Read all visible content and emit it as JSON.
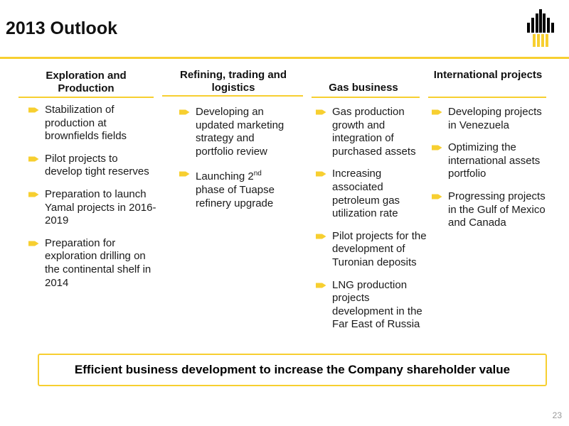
{
  "title": "2013 Outlook",
  "colors": {
    "accent": "#f7cf30",
    "logo_black": "#000000",
    "logo_yellow": "#f7cf30"
  },
  "columns": [
    {
      "heading": "Exploration and Production",
      "items": [
        "Stabilization of production at brownfields fields",
        "Pilot projects to develop tight reserves",
        "Preparation to launch Yamal projects in 2016-2019",
        "Preparation for exploration drilling on the continental shelf in 2014"
      ]
    },
    {
      "heading": "Refining, trading and logistics",
      "items": [
        "Developing an updated marketing strategy and portfolio review",
        {
          "before": "Launching 2",
          "sup": "nd",
          "after": " phase of Tuapse refinery upgrade"
        }
      ]
    },
    {
      "heading": "Gas business",
      "items": [
        "Gas production growth and integration of purchased assets",
        "Increasing associated petroleum gas utilization rate",
        "Pilot projects for the development of Turonian deposits",
        "LNG production projects development in the Far East of Russia"
      ]
    },
    {
      "heading": "International projects",
      "items": [
        "Developing projects in Venezuela",
        "Optimizing the international assets portfolio",
        "Progressing projects in the Gulf of Mexico and Canada"
      ]
    }
  ],
  "footer": "Efficient business development to increase the Company shareholder value",
  "page_number": "23"
}
